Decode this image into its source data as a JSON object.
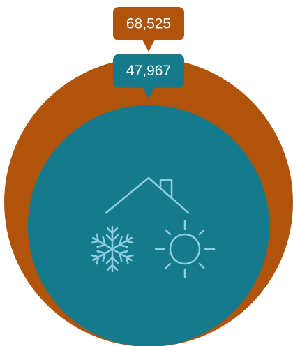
{
  "chart_data": {
    "type": "bubble",
    "values": [
      68525,
      47967
    ],
    "value_labels": [
      "68,525",
      "47,967"
    ],
    "colors": [
      "#b0540c",
      "#167a8d"
    ]
  }
}
